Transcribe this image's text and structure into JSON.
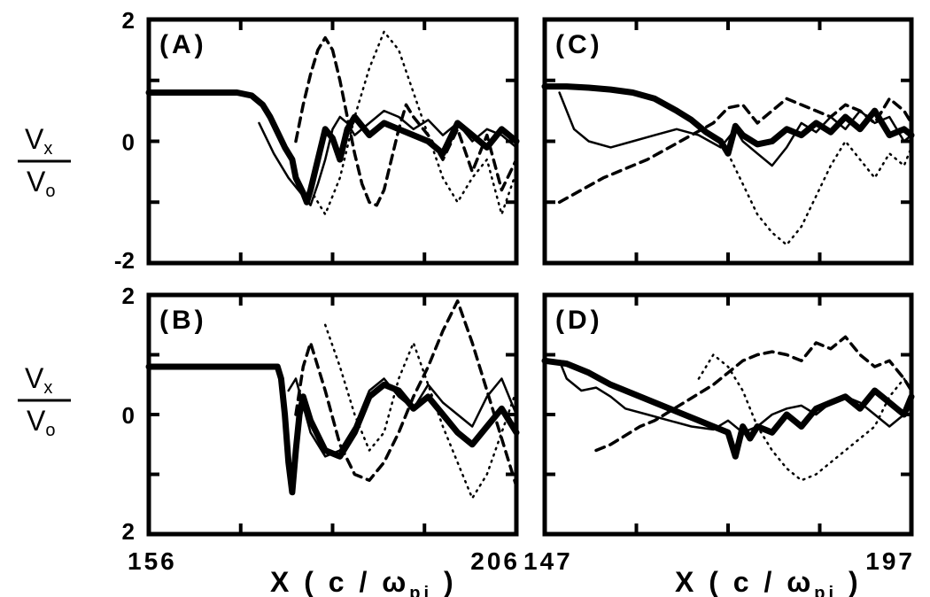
{
  "figure": {
    "ylabel_num": "V",
    "ylabel_num_sub": "x",
    "ylabel_den": "V",
    "ylabel_den_sub": "o",
    "xlabel_left": {
      "main": "X ( c / ω",
      "sub": "pi",
      "close": " )"
    },
    "xlabel_right": {
      "main": "X ( c / ω",
      "sub": "pi",
      "close": " )"
    }
  },
  "chart_data": [
    {
      "type": "line",
      "panel": "(A)",
      "xlim": [
        156,
        206
      ],
      "ylim": [
        -2,
        2
      ],
      "x_tick_labels": [],
      "y_tick_labels": [
        "2",
        "0",
        "-2"
      ],
      "series": [
        {
          "style": "thick",
          "x": [
            156,
            160,
            164,
            168,
            170,
            171.5,
            172.5,
            173.5,
            174.5,
            175.5,
            176,
            177,
            177.5,
            178,
            179,
            180,
            181,
            182,
            183,
            184,
            186,
            188,
            190,
            192,
            194,
            196,
            198,
            200,
            202,
            204,
            206
          ],
          "y": [
            0.8,
            0.8,
            0.8,
            0.8,
            0.75,
            0.6,
            0.4,
            0.15,
            -0.1,
            -0.3,
            -0.6,
            -0.85,
            -1.0,
            -0.8,
            -0.3,
            0.2,
            0.05,
            -0.3,
            0.2,
            0.4,
            0.1,
            0.3,
            0.2,
            0.1,
            0.0,
            -0.2,
            0.3,
            0.1,
            -0.1,
            0.2,
            0.0
          ]
        },
        {
          "style": "thin",
          "x": [
            171,
            173,
            175,
            177,
            178,
            179,
            180,
            181,
            182,
            183,
            184,
            186,
            188,
            190,
            192,
            194,
            196,
            198,
            200,
            202,
            204,
            206
          ],
          "y": [
            0.3,
            -0.2,
            -0.6,
            -0.9,
            -1.05,
            -0.7,
            -0.3,
            0.2,
            0.4,
            0.3,
            0.1,
            0.3,
            0.5,
            0.4,
            0.2,
            0.35,
            0.1,
            0.3,
            0.0,
            0.2,
            0.1,
            -0.1
          ]
        },
        {
          "style": "dash",
          "x": [
            176,
            177,
            178,
            179,
            180,
            181,
            182,
            183,
            184,
            185,
            186,
            187,
            188,
            189,
            190,
            191,
            192,
            194,
            196,
            198,
            200,
            202,
            204,
            206
          ],
          "y": [
            0.0,
            0.6,
            1.1,
            1.5,
            1.7,
            1.5,
            1.0,
            0.4,
            -0.2,
            -0.7,
            -1.0,
            -1.05,
            -0.8,
            -0.3,
            0.2,
            0.6,
            0.4,
            0.1,
            -0.3,
            0.2,
            -0.5,
            0.1,
            -0.8,
            -0.3
          ]
        },
        {
          "style": "dot",
          "x": [
            178,
            180,
            182,
            184,
            186,
            188,
            190,
            192,
            194,
            196,
            198,
            200,
            202,
            204,
            206
          ],
          "y": [
            -0.8,
            -1.2,
            -0.6,
            0.4,
            1.2,
            1.8,
            1.5,
            0.8,
            0.1,
            -0.6,
            -1.0,
            -0.6,
            -0.3,
            -1.2,
            -0.5
          ]
        }
      ]
    },
    {
      "type": "line",
      "panel": "(B)",
      "xlim": [
        156,
        206
      ],
      "ylim": [
        -2,
        2
      ],
      "x_tick_labels": [
        "156",
        "206"
      ],
      "y_tick_labels": [
        "2",
        "0",
        "2"
      ],
      "series": [
        {
          "style": "thick",
          "x": [
            156,
            160,
            164,
            168,
            172,
            173.5,
            174,
            174.5,
            175,
            175.5,
            176,
            176.5,
            177,
            178,
            180,
            182,
            184,
            186,
            188,
            190,
            192,
            194,
            196,
            198,
            200,
            202,
            204,
            206
          ],
          "y": [
            0.8,
            0.8,
            0.8,
            0.8,
            0.8,
            0.8,
            0.6,
            0.0,
            -0.8,
            -1.3,
            -0.6,
            0.0,
            0.3,
            -0.1,
            -0.6,
            -0.7,
            -0.3,
            0.3,
            0.5,
            0.4,
            0.1,
            0.3,
            0.0,
            -0.3,
            -0.5,
            -0.2,
            0.1,
            -0.3
          ]
        },
        {
          "style": "thin",
          "x": [
            175,
            176,
            178,
            180,
            182,
            184,
            186,
            188,
            190,
            192,
            194,
            196,
            198,
            200,
            202,
            204,
            206
          ],
          "y": [
            0.4,
            0.6,
            -0.3,
            -0.7,
            -0.6,
            -0.2,
            0.4,
            0.6,
            0.3,
            0.1,
            0.5,
            0.2,
            0.0,
            -0.2,
            0.3,
            0.6,
            0.0
          ]
        },
        {
          "style": "dash",
          "x": [
            176,
            177,
            178,
            180,
            182,
            184,
            186,
            188,
            190,
            192,
            194,
            196,
            198,
            200,
            202,
            204,
            206
          ],
          "y": [
            0.0,
            0.8,
            1.2,
            0.4,
            -0.5,
            -1.0,
            -1.1,
            -0.8,
            -0.3,
            0.3,
            0.8,
            1.4,
            1.9,
            1.2,
            0.4,
            -0.4,
            -1.2
          ]
        },
        {
          "style": "dot",
          "x": [
            180,
            182,
            184,
            186,
            188,
            190,
            192,
            194,
            196,
            198,
            200,
            202,
            204,
            206
          ],
          "y": [
            1.5,
            0.8,
            0.0,
            -0.6,
            -0.3,
            0.6,
            1.2,
            0.5,
            -0.2,
            -0.8,
            -1.4,
            -1.0,
            -0.3,
            0.4
          ]
        }
      ]
    },
    {
      "type": "line",
      "panel": "(C)",
      "xlim": [
        147,
        197
      ],
      "ylim": [
        -2,
        2
      ],
      "x_tick_labels": [],
      "y_tick_labels": [],
      "series": [
        {
          "style": "thick",
          "x": [
            147,
            150,
            153,
            156,
            159,
            162,
            165,
            167,
            169,
            171,
            172,
            173,
            174,
            176,
            178,
            180,
            182,
            184,
            186,
            188,
            190,
            192,
            194,
            196,
            197
          ],
          "y": [
            0.9,
            0.9,
            0.88,
            0.85,
            0.8,
            0.7,
            0.5,
            0.35,
            0.15,
            0.0,
            -0.2,
            0.25,
            0.1,
            -0.05,
            0.0,
            0.2,
            0.1,
            0.3,
            0.15,
            0.4,
            0.2,
            0.5,
            0.1,
            0.2,
            0.1
          ]
        },
        {
          "style": "thin",
          "x": [
            149,
            150,
            151,
            153,
            156,
            159,
            162,
            165,
            168,
            171,
            173,
            174,
            176,
            178,
            180,
            182,
            184,
            186,
            188,
            190,
            192,
            194,
            196,
            197
          ],
          "y": [
            0.8,
            0.5,
            0.2,
            0.0,
            -0.1,
            0.0,
            0.1,
            0.2,
            0.1,
            -0.1,
            0.2,
            0.0,
            -0.2,
            -0.4,
            -0.1,
            0.3,
            0.15,
            0.4,
            0.2,
            0.5,
            0.3,
            0.4,
            0.0,
            0.1
          ]
        },
        {
          "style": "dash",
          "x": [
            149,
            152,
            155,
            158,
            161,
            164,
            167,
            170,
            172,
            174,
            176,
            178,
            180,
            182,
            184,
            186,
            188,
            190,
            192,
            194,
            196,
            197
          ],
          "y": [
            -1.0,
            -0.8,
            -0.6,
            -0.45,
            -0.3,
            -0.1,
            0.1,
            0.3,
            0.55,
            0.6,
            0.3,
            0.5,
            0.7,
            0.6,
            0.5,
            0.4,
            0.6,
            0.5,
            0.3,
            0.7,
            0.5,
            0.3
          ]
        },
        {
          "style": "dot",
          "x": [
            172,
            174,
            176,
            178,
            180,
            182,
            184,
            186,
            188,
            190,
            192,
            194,
            196,
            197
          ],
          "y": [
            -0.2,
            -0.7,
            -1.2,
            -1.5,
            -1.7,
            -1.4,
            -0.9,
            -0.4,
            0.0,
            -0.3,
            -0.6,
            -0.2,
            -0.4,
            -0.1
          ]
        }
      ]
    },
    {
      "type": "line",
      "panel": "(D)",
      "xlim": [
        147,
        197
      ],
      "ylim": [
        -2,
        2
      ],
      "x_tick_labels": [
        "147",
        "197"
      ],
      "y_tick_labels": [],
      "series": [
        {
          "style": "thick",
          "x": [
            147,
            150,
            153,
            156,
            159,
            162,
            165,
            168,
            170,
            172,
            173,
            174,
            175,
            176,
            178,
            180,
            182,
            184,
            186,
            188,
            190,
            192,
            194,
            196,
            197
          ],
          "y": [
            0.9,
            0.85,
            0.7,
            0.5,
            0.35,
            0.2,
            0.05,
            -0.1,
            -0.2,
            -0.3,
            -0.7,
            -0.2,
            -0.4,
            -0.2,
            -0.3,
            0.0,
            -0.2,
            0.1,
            0.2,
            0.3,
            0.1,
            0.4,
            0.2,
            0.0,
            0.3
          ]
        },
        {
          "style": "thin",
          "x": [
            149,
            150,
            152,
            154,
            156,
            158,
            161,
            164,
            167,
            170,
            172,
            174,
            176,
            178,
            180,
            182,
            184,
            186,
            188,
            190,
            192,
            194,
            196,
            197
          ],
          "y": [
            0.9,
            0.6,
            0.4,
            0.45,
            0.3,
            0.1,
            0.0,
            -0.1,
            -0.2,
            -0.25,
            -0.1,
            -0.3,
            -0.2,
            0.0,
            0.1,
            0.15,
            0.0,
            0.2,
            0.3,
            0.2,
            0.0,
            -0.2,
            0.0,
            0.0
          ]
        },
        {
          "style": "dash",
          "x": [
            154,
            156,
            158,
            160,
            162,
            164,
            166,
            168,
            170,
            172,
            174,
            176,
            178,
            180,
            182,
            184,
            186,
            188,
            190,
            192,
            194,
            196,
            197
          ],
          "y": [
            -0.6,
            -0.5,
            -0.35,
            -0.2,
            -0.1,
            0.05,
            0.2,
            0.35,
            0.5,
            0.7,
            0.9,
            1.0,
            1.05,
            1.0,
            0.9,
            1.2,
            1.1,
            1.3,
            1.0,
            0.8,
            0.9,
            0.6,
            0.4
          ]
        },
        {
          "style": "dot",
          "x": [
            168,
            170,
            172,
            174,
            176,
            178,
            180,
            182,
            184,
            186,
            188,
            190,
            192,
            194,
            196,
            197
          ],
          "y": [
            0.6,
            1.0,
            0.8,
            0.4,
            -0.2,
            -0.6,
            -0.9,
            -1.1,
            -1.0,
            -0.8,
            -0.6,
            -0.4,
            -0.2,
            0.3,
            0.6,
            0.4
          ]
        }
      ]
    }
  ]
}
